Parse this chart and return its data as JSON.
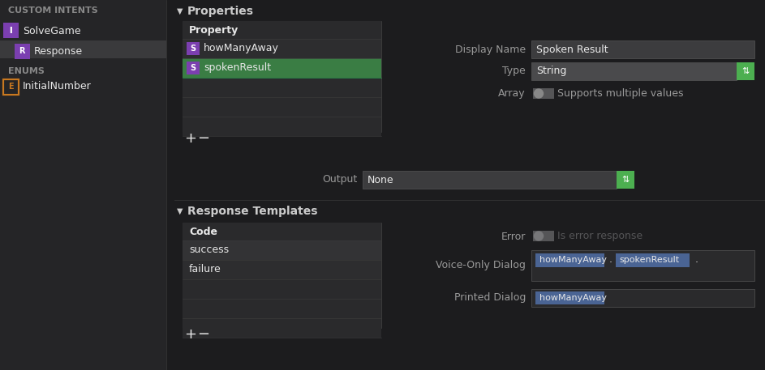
{
  "bg_color": "#1c1c1e",
  "sidebar_bg": "#252527",
  "selected_row_sidebar": "#3a3a3c",
  "panel_bg": "#2a2a2c",
  "dark_row": "#2d2d2f",
  "selected_row_green": "#3a7d44",
  "header_row_bg": "#1a1a1c",
  "text_white": "#e8e8e8",
  "text_dim": "#888888",
  "text_label": "#999999",
  "text_section": "#cccccc",
  "input_bg": "#3c3c3e",
  "input_bg_dark": "#2a2a2c",
  "green_btn": "#4CAF50",
  "divider": "#404040",
  "divider2": "#3a3a3a",
  "tag_blue": "#3b5998",
  "tag_blue2": "#4a6494",
  "purple_icon": "#7b3fb0",
  "orange_icon": "#c87820",
  "sidebar_header": "CUSTOM INTENTS",
  "enums_header": "ENUMS",
  "properties_title": "Properties",
  "property_col_header": "Property",
  "prop_row1": "howManyAway",
  "prop_row2": "spokenResult",
  "display_name_label": "Display Name",
  "display_name_value": "Spoken Result",
  "type_label": "Type",
  "type_value": "String",
  "array_label": "Array",
  "array_value": "Supports multiple values",
  "output_label": "Output",
  "output_value": "None",
  "response_templates_title": "Response Templates",
  "code_col_header": "Code",
  "code_row1": "success",
  "code_row2": "failure",
  "error_label": "Error",
  "error_value": "Is error response",
  "voice_dialog_label": "Voice-Only Dialog",
  "voice_tokens": [
    "howManyAway",
    ".",
    "spokenResult",
    "."
  ],
  "printed_dialog_label": "Printed Dialog",
  "printed_tokens": [
    "howManyAway"
  ],
  "sidebar_solve_label": "SolveGame",
  "sidebar_response_label": "Response",
  "sidebar_enum_label": "InitialNumber"
}
